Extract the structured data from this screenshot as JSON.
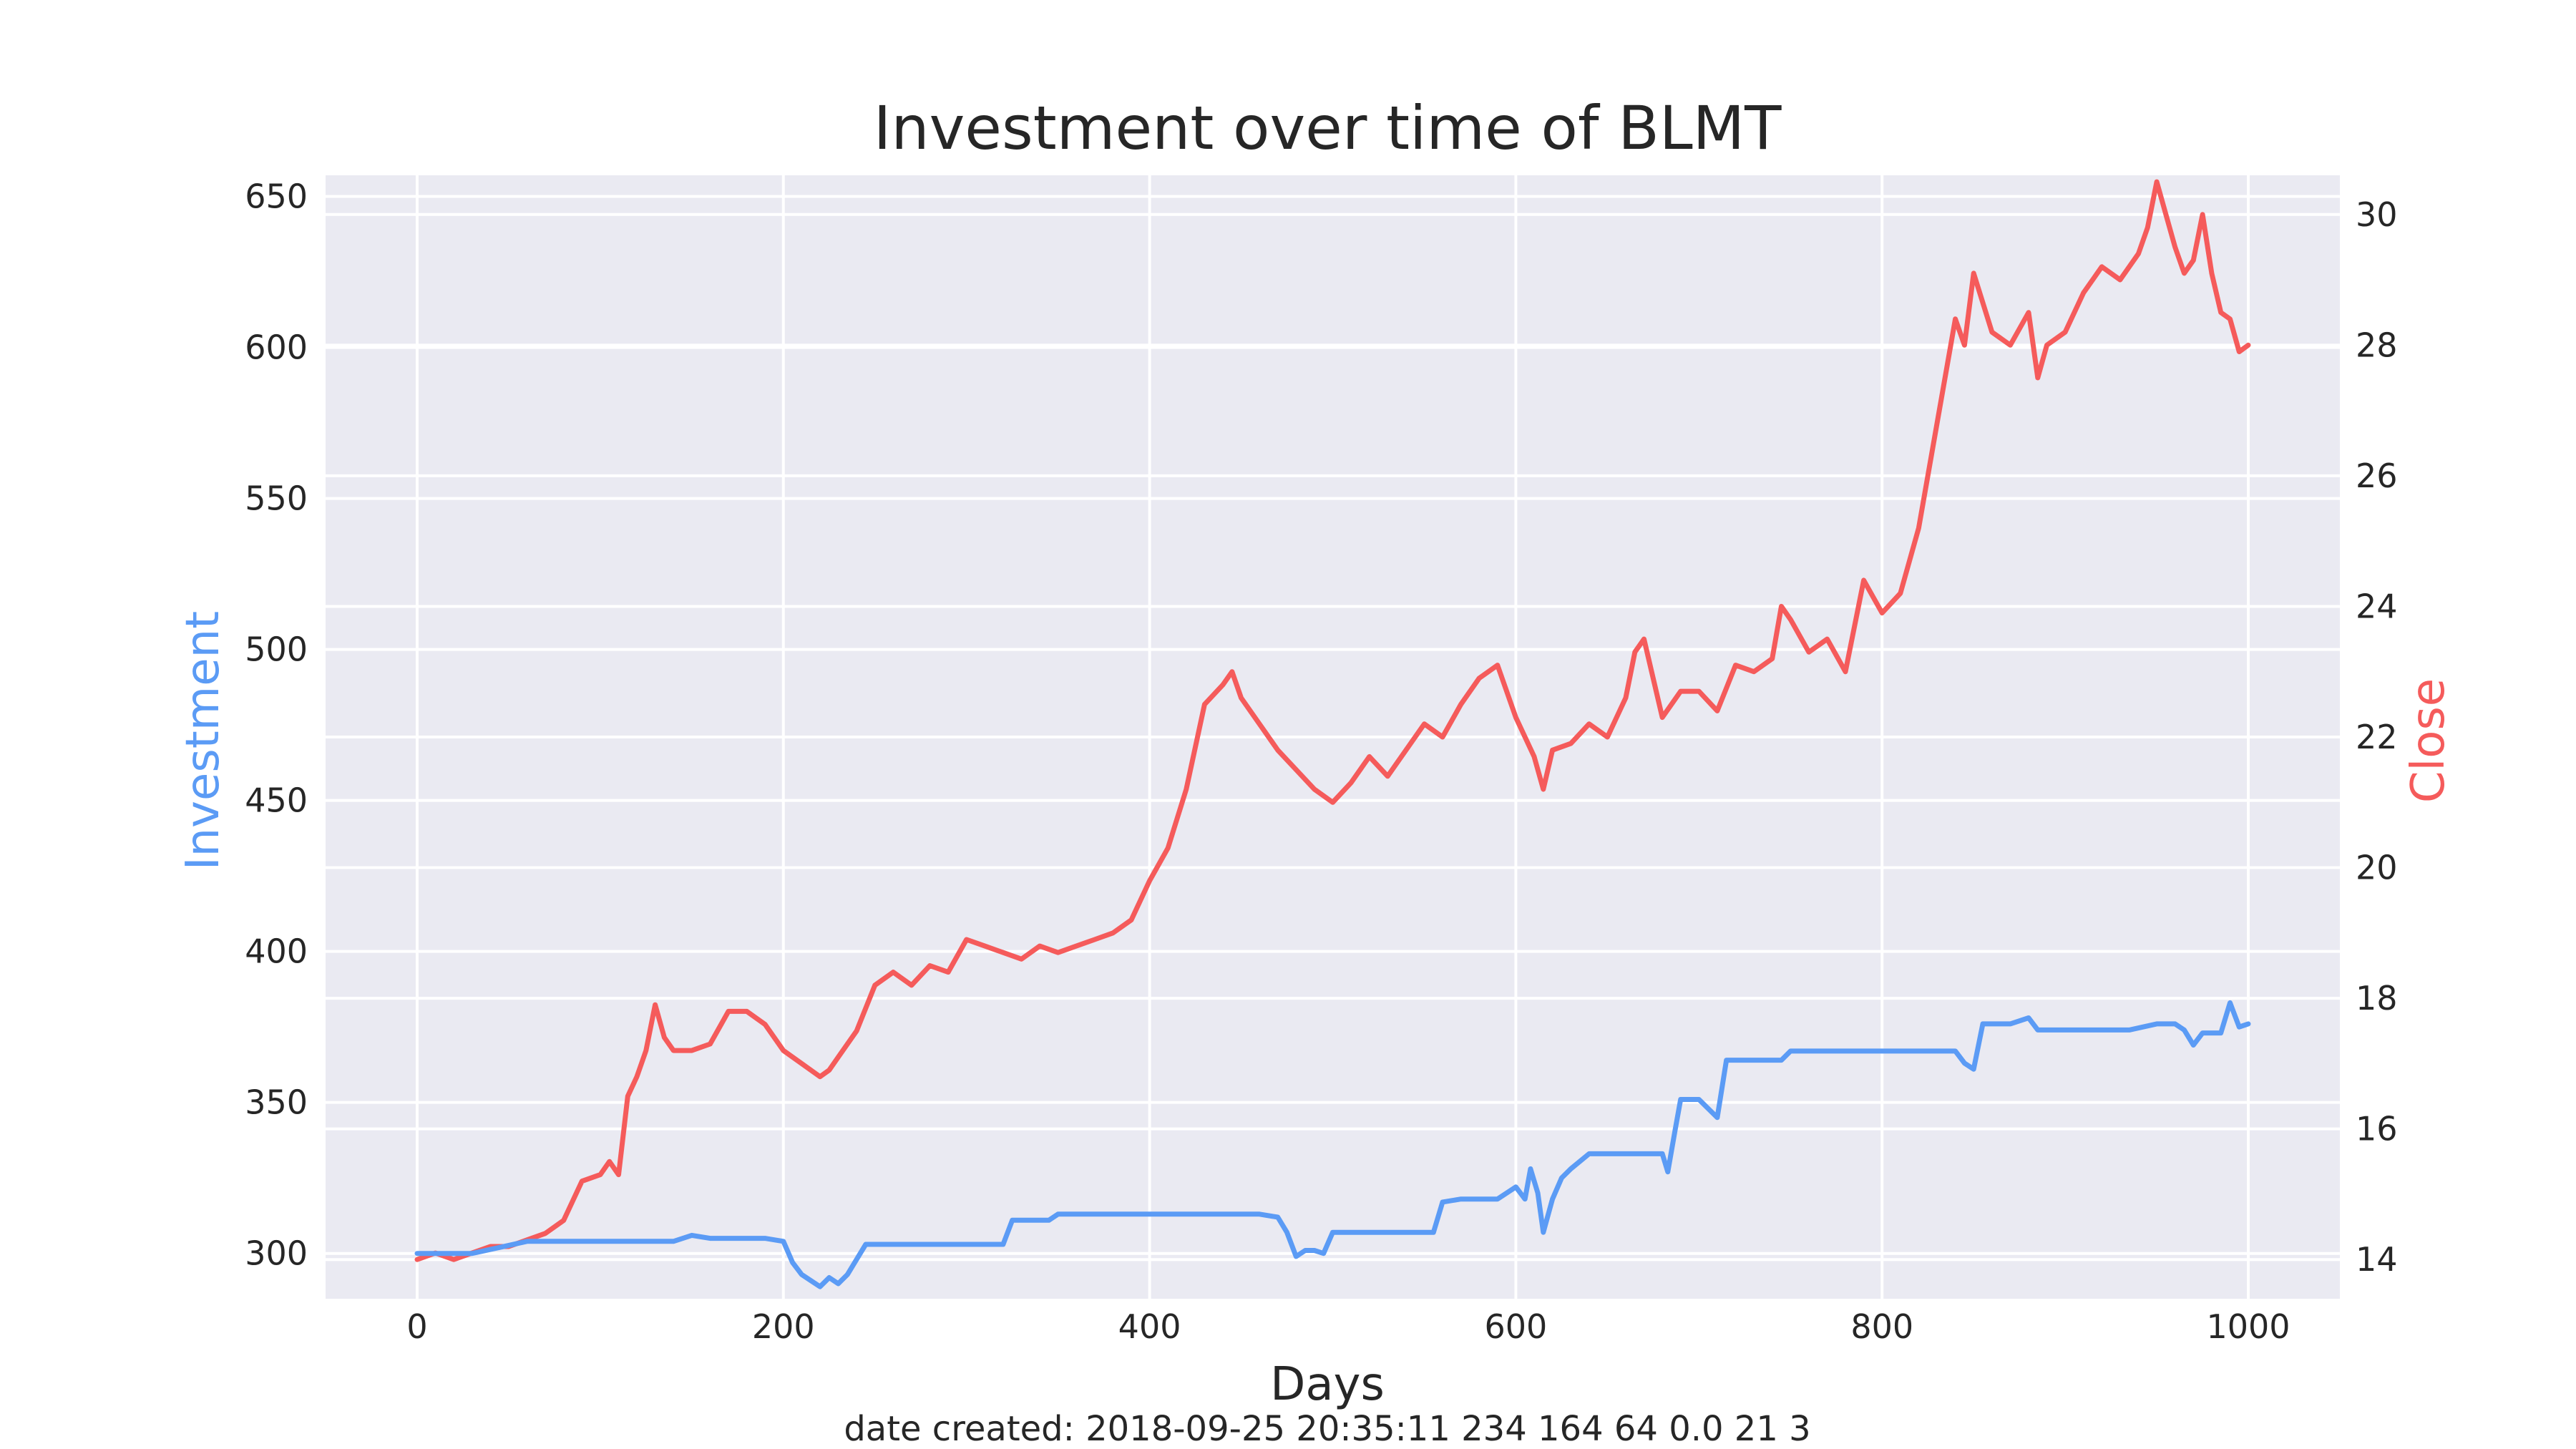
{
  "chart_data": {
    "type": "line",
    "title": "Investment over time of BLMT",
    "xlabel": "Days",
    "ylabel_left": "Investment",
    "ylabel_right": "Close",
    "footer": "date created: 2018-09-25 20:35:11 234 164 64 0.0 21 3",
    "xlim": [
      -50,
      1050
    ],
    "ylim_left": [
      285,
      657
    ],
    "ylim_right": [
      13.4,
      30.6
    ],
    "x_ticks": [
      0,
      200,
      400,
      600,
      800,
      1000
    ],
    "y_left_ticks": [
      300,
      350,
      400,
      450,
      500,
      550,
      600,
      650
    ],
    "y_right_ticks": [
      14,
      16,
      18,
      20,
      22,
      24,
      26,
      28,
      30
    ],
    "colors": {
      "investment": "#5b9bf5",
      "close": "#f55b5b",
      "plot_bg": "#eaeaf2",
      "grid": "#ffffff"
    },
    "series": [
      {
        "name": "Investment",
        "axis": "left",
        "x": [
          0,
          30,
          45,
          60,
          80,
          100,
          120,
          140,
          150,
          160,
          170,
          180,
          190,
          200,
          205,
          210,
          215,
          220,
          225,
          230,
          235,
          240,
          245,
          260,
          300,
          320,
          325,
          345,
          350,
          380,
          400,
          420,
          460,
          470,
          475,
          480,
          485,
          490,
          495,
          500,
          510,
          530,
          555,
          560,
          570,
          590,
          600,
          605,
          608,
          612,
          615,
          620,
          625,
          630,
          640,
          660,
          670,
          680,
          683,
          687,
          690,
          700,
          710,
          715,
          730,
          745,
          750,
          800,
          840,
          845,
          850,
          855,
          860,
          870,
          880,
          885,
          900,
          920,
          935,
          950,
          960,
          965,
          970,
          975,
          985,
          990,
          995,
          1000
        ],
        "values": [
          300,
          300,
          302,
          304,
          304,
          304,
          304,
          304,
          306,
          305,
          305,
          305,
          305,
          304,
          297,
          293,
          291,
          289,
          292,
          290,
          293,
          298,
          303,
          303,
          303,
          303,
          311,
          311,
          313,
          313,
          313,
          313,
          313,
          312,
          307,
          299,
          301,
          301,
          300,
          307,
          307,
          307,
          307,
          317,
          318,
          318,
          322,
          318,
          328,
          320,
          307,
          318,
          325,
          328,
          333,
          333,
          333,
          333,
          327,
          341,
          351,
          351,
          345,
          364,
          364,
          364,
          367,
          367,
          367,
          363,
          361,
          376,
          376,
          376,
          378,
          374,
          374,
          374,
          374,
          376,
          376,
          374,
          369,
          373,
          373,
          383,
          375,
          376
        ]
      },
      {
        "name": "Close",
        "axis": "right",
        "x": [
          0,
          10,
          20,
          30,
          40,
          50,
          60,
          70,
          80,
          90,
          100,
          105,
          110,
          115,
          120,
          125,
          130,
          135,
          140,
          150,
          160,
          170,
          180,
          190,
          200,
          210,
          220,
          225,
          230,
          240,
          250,
          260,
          270,
          280,
          290,
          300,
          310,
          320,
          330,
          340,
          350,
          360,
          370,
          380,
          390,
          400,
          410,
          420,
          430,
          440,
          445,
          450,
          460,
          470,
          480,
          490,
          500,
          510,
          520,
          530,
          540,
          550,
          560,
          570,
          580,
          590,
          600,
          610,
          615,
          620,
          630,
          640,
          650,
          660,
          665,
          670,
          680,
          690,
          700,
          710,
          720,
          730,
          740,
          745,
          750,
          760,
          770,
          780,
          790,
          800,
          810,
          820,
          830,
          840,
          845,
          850,
          860,
          870,
          880,
          885,
          890,
          900,
          910,
          920,
          930,
          940,
          945,
          950,
          955,
          960,
          965,
          970,
          975,
          980,
          985,
          990,
          995,
          1000
        ],
        "values": [
          14.0,
          14.1,
          14.0,
          14.1,
          14.2,
          14.2,
          14.3,
          14.4,
          14.6,
          15.2,
          15.3,
          15.5,
          15.3,
          16.5,
          16.8,
          17.2,
          17.9,
          17.4,
          17.2,
          17.2,
          17.3,
          17.8,
          17.8,
          17.6,
          17.2,
          17.0,
          16.8,
          16.9,
          17.1,
          17.5,
          18.2,
          18.4,
          18.2,
          18.5,
          18.4,
          18.9,
          18.8,
          18.7,
          18.6,
          18.8,
          18.7,
          18.8,
          18.9,
          19.0,
          19.2,
          19.8,
          20.3,
          21.2,
          22.5,
          22.8,
          23.0,
          22.6,
          22.2,
          21.8,
          21.5,
          21.2,
          21.0,
          21.3,
          21.7,
          21.4,
          21.8,
          22.2,
          22.0,
          22.5,
          22.9,
          23.1,
          22.3,
          21.7,
          21.2,
          21.8,
          21.9,
          22.2,
          22.0,
          22.6,
          23.3,
          23.5,
          22.3,
          22.7,
          22.7,
          22.4,
          23.1,
          23.0,
          23.2,
          24.0,
          23.8,
          23.3,
          23.5,
          23.0,
          24.4,
          23.9,
          24.2,
          25.2,
          26.8,
          28.4,
          28.0,
          29.1,
          28.2,
          28.0,
          28.5,
          27.5,
          28.0,
          28.2,
          28.8,
          29.2,
          29.0,
          29.4,
          29.8,
          30.5,
          30.0,
          29.5,
          29.1,
          29.3,
          30.0,
          29.1,
          28.5,
          28.4,
          27.9,
          28.0
        ]
      }
    ]
  }
}
